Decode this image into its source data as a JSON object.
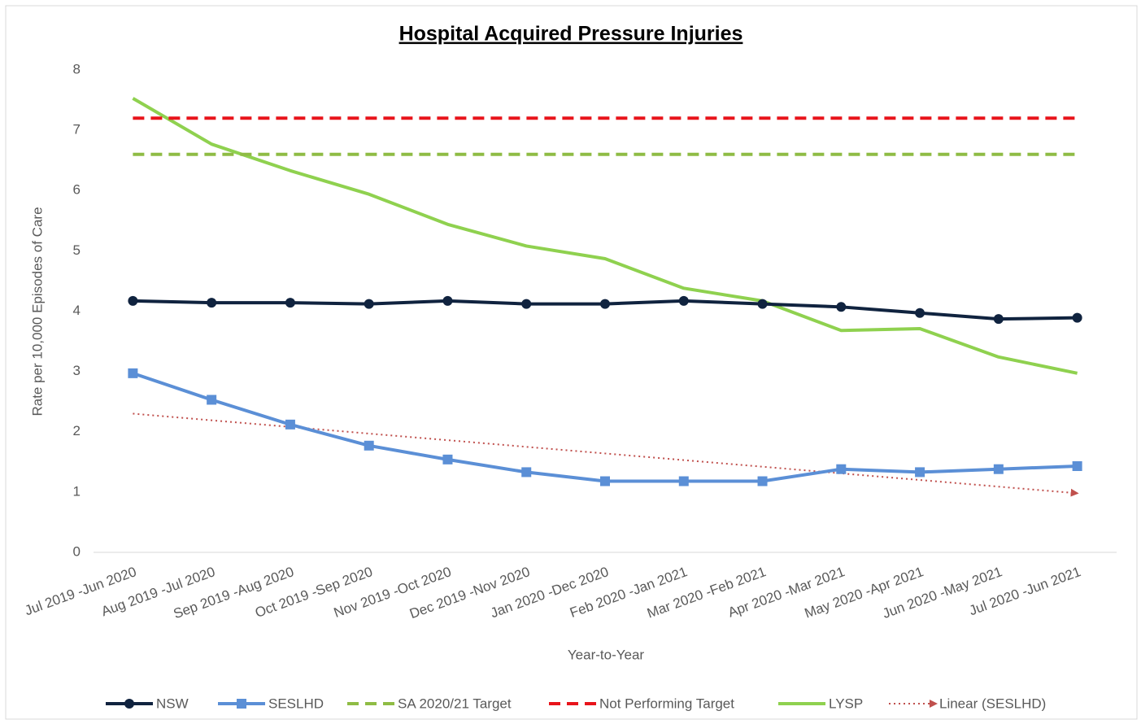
{
  "chart_data": {
    "type": "line",
    "title": "Hospital Acquired Pressure Injuries",
    "x_label": "Year-to-Year",
    "y_label": "Rate per 10,000 Episodes of Care",
    "categories": [
      "Jul 2019 -Jun 2020",
      "Aug 2019 -Jul 2020",
      "Sep 2019 -Aug 2020",
      "Oct 2019 -Sep 2020",
      "Nov 2019 -Oct 2020",
      "Dec 2019 -Nov 2020",
      "Jan 2020 -Dec 2020",
      "Feb 2020 -Jan 2021",
      "Mar 2020 -Feb 2021",
      "Apr 2020 -Mar 2021",
      "May 2020 -Apr 2021",
      "Jun 2020 -May 2021",
      "Jul 2020 -Jun 2021"
    ],
    "ylim": [
      0,
      8
    ],
    "yticks": [
      0,
      1,
      2,
      3,
      4,
      5,
      6,
      7,
      8
    ],
    "grid": false,
    "legend": "bottom",
    "series": [
      {
        "name": "NSW",
        "color": "#10233f",
        "dash": "solid",
        "marker": "circle",
        "values": [
          4.17,
          4.14,
          4.14,
          4.12,
          4.17,
          4.12,
          4.12,
          4.17,
          4.12,
          4.07,
          3.97,
          3.87,
          3.89
        ]
      },
      {
        "name": "SESLHD",
        "color": "#5b8fd6",
        "dash": "solid",
        "marker": "square",
        "values": [
          2.97,
          2.53,
          2.12,
          1.77,
          1.54,
          1.33,
          1.18,
          1.18,
          1.18,
          1.38,
          1.33,
          1.38,
          1.43
        ]
      },
      {
        "name": "SA 2020/21 Target",
        "color": "#8fbc45",
        "dash": "dashed",
        "marker": "none",
        "values": [
          6.6,
          6.6,
          6.6,
          6.6,
          6.6,
          6.6,
          6.6,
          6.6,
          6.6,
          6.6,
          6.6,
          6.6,
          6.6
        ]
      },
      {
        "name": "Not Performing Target",
        "color": "#e8141b",
        "dash": "dashed",
        "marker": "none",
        "values": [
          7.2,
          7.2,
          7.2,
          7.2,
          7.2,
          7.2,
          7.2,
          7.2,
          7.2,
          7.2,
          7.2,
          7.2,
          7.2
        ]
      },
      {
        "name": "LYSP",
        "color": "#8fd14f",
        "dash": "solid",
        "marker": "none",
        "values": [
          7.53,
          6.77,
          6.33,
          5.94,
          5.44,
          5.08,
          4.87,
          4.38,
          4.17,
          3.68,
          3.71,
          3.24,
          2.97
        ]
      },
      {
        "name": "Linear (SESLHD)",
        "color": "#c0504d",
        "dash": "dotted",
        "marker": "arrow",
        "values": [
          2.3,
          2.19,
          2.08,
          1.97,
          1.86,
          1.75,
          1.64,
          1.53,
          1.42,
          1.31,
          1.2,
          1.09,
          0.98
        ]
      }
    ]
  }
}
